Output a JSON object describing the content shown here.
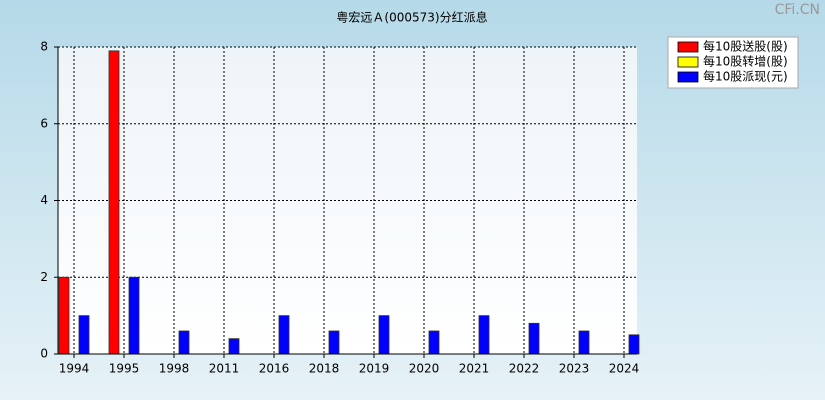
{
  "chart_data": {
    "type": "bar",
    "title": "粤宏远Ａ(000573)分红派息",
    "watermark": "CFi.CN",
    "categories": [
      "1994",
      "1995",
      "1998",
      "2011",
      "2016",
      "2018",
      "2019",
      "2020",
      "2021",
      "2022",
      "2023",
      "2024"
    ],
    "series": [
      {
        "name": "每10股送股(股)",
        "color": "#ff0000",
        "values": [
          2,
          7.9,
          null,
          null,
          null,
          null,
          null,
          null,
          null,
          null,
          null,
          null
        ]
      },
      {
        "name": "每10股转增(股)",
        "color": "#ffff00",
        "values": [
          null,
          null,
          null,
          null,
          null,
          null,
          null,
          null,
          null,
          null,
          null,
          null
        ]
      },
      {
        "name": "每10股派现(元)",
        "color": "#0000ff",
        "values": [
          1,
          2,
          0.6,
          0.4,
          1,
          0.6,
          1,
          0.6,
          1,
          0.8,
          0.6,
          0.5
        ]
      }
    ],
    "ylim": [
      0,
      8
    ],
    "yticks": [
      0,
      2,
      4,
      6,
      8
    ],
    "grid": true,
    "legend": "top-right"
  }
}
